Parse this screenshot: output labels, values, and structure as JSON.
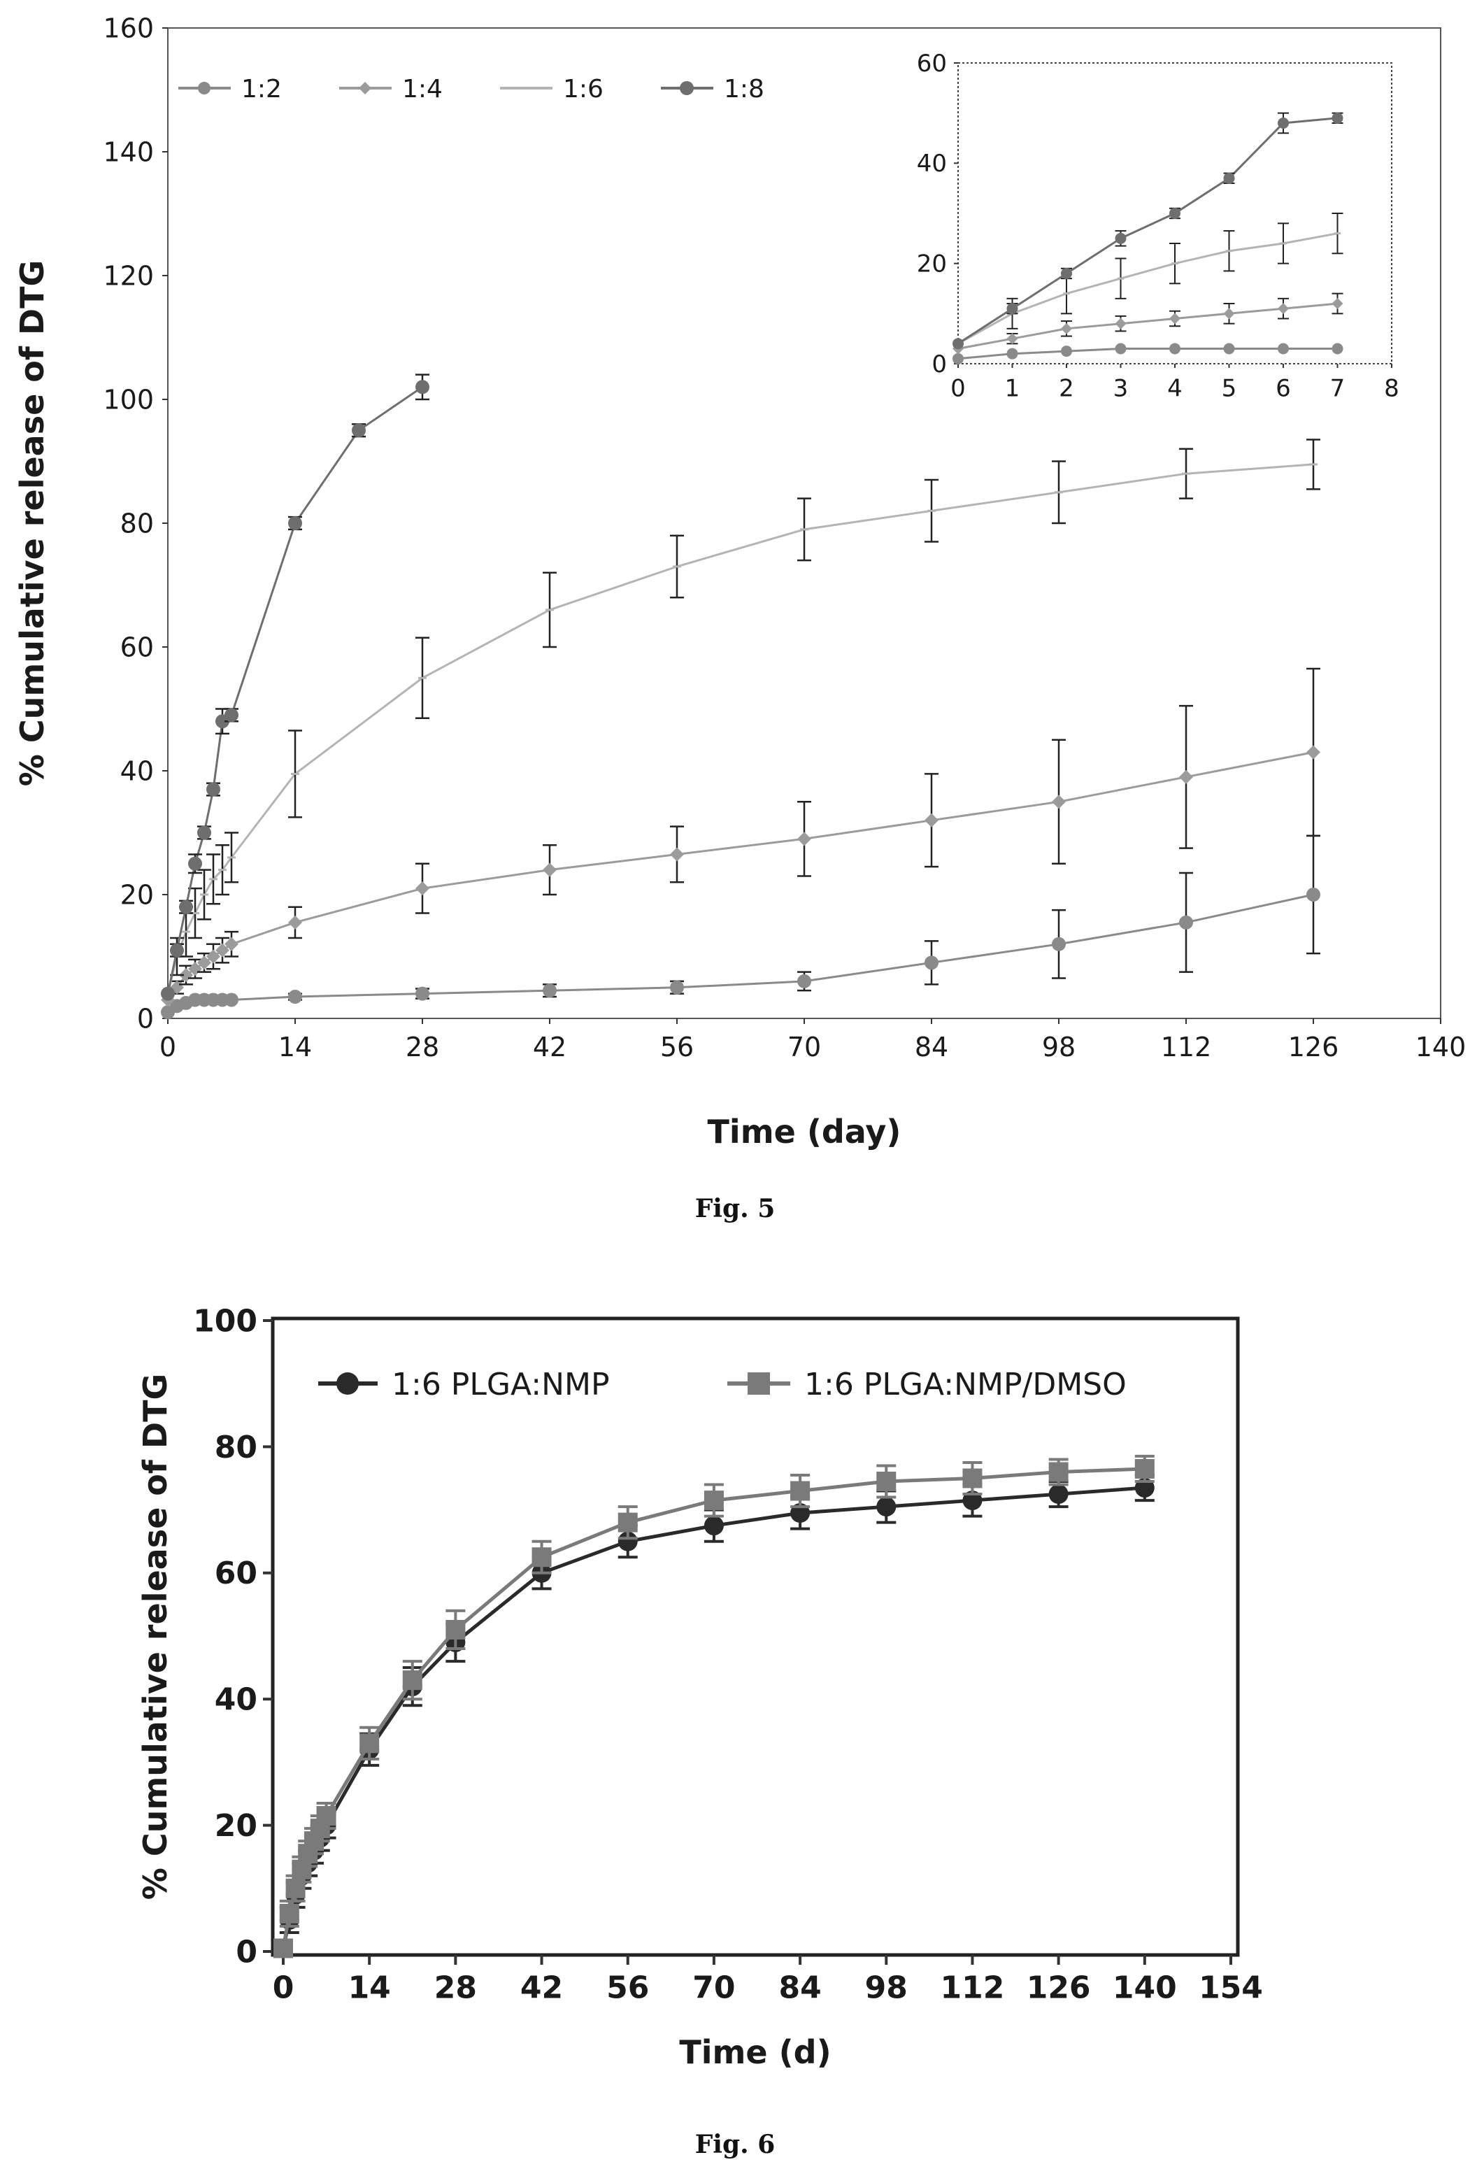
{
  "chart_data": [
    {
      "type": "line",
      "title": "",
      "xlabel": "Time (day)",
      "ylabel": "% Cumulative release of DTG",
      "xlim": [
        0,
        140
      ],
      "ylim": [
        0,
        160
      ],
      "xticks": [
        0,
        14,
        28,
        42,
        56,
        70,
        84,
        98,
        112,
        126,
        140
      ],
      "yticks": [
        0,
        20,
        40,
        60,
        80,
        100,
        120,
        140,
        160
      ],
      "legend_position": "top-left",
      "grid": false,
      "caption": "Fig. 5",
      "series": [
        {
          "name": "1:2",
          "color": "#8a8a8a",
          "x": [
            0,
            1,
            2,
            3,
            4,
            5,
            6,
            7,
            14,
            28,
            42,
            56,
            70,
            84,
            98,
            112,
            126
          ],
          "y": [
            1,
            2,
            2.5,
            3,
            3,
            3,
            3,
            3,
            3.5,
            4,
            4.5,
            5,
            6,
            9,
            12,
            15.5,
            20
          ],
          "err": [
            0,
            0,
            0,
            0,
            0,
            0,
            0,
            0,
            0.5,
            0.8,
            1,
            1,
            1.5,
            3.5,
            5.5,
            8,
            9.5
          ]
        },
        {
          "name": "1:4",
          "color": "#9b9b9b",
          "x": [
            0,
            1,
            2,
            3,
            4,
            5,
            6,
            7,
            14,
            28,
            42,
            56,
            70,
            84,
            98,
            112,
            126
          ],
          "y": [
            3,
            5,
            7,
            8,
            9,
            10,
            11,
            12,
            15.5,
            21,
            24,
            26.5,
            29,
            32,
            35,
            39,
            43
          ],
          "err": [
            0,
            1,
            1.5,
            1.5,
            1.5,
            2,
            2,
            2,
            2.5,
            4,
            4,
            4.5,
            6,
            7.5,
            10,
            11.5,
            13.5
          ]
        },
        {
          "name": "1:6",
          "color": "#b4b4b4",
          "x": [
            0,
            1,
            2,
            3,
            4,
            5,
            6,
            7,
            14,
            28,
            42,
            56,
            70,
            84,
            98,
            112,
            126
          ],
          "y": [
            4,
            10,
            14,
            17,
            20,
            22.5,
            24,
            26,
            39.5,
            55,
            66,
            73,
            79,
            82,
            85,
            88,
            89.5
          ],
          "err": [
            0,
            3,
            4,
            4,
            4,
            4,
            4,
            4,
            7,
            6.5,
            6,
            5,
            5,
            5,
            5,
            4,
            4
          ]
        },
        {
          "name": "1:8",
          "color": "#6e6e6e",
          "x": [
            0,
            1,
            2,
            3,
            4,
            5,
            6,
            7,
            14,
            21,
            28
          ],
          "y": [
            4,
            11,
            18,
            25,
            30,
            37,
            48,
            49,
            80,
            95,
            102
          ],
          "err": [
            0,
            1,
            1,
            1.5,
            1,
            1,
            2,
            1,
            1,
            1,
            2
          ]
        }
      ],
      "inset": {
        "xlim": [
          0,
          8
        ],
        "ylim": [
          0,
          60
        ],
        "xticks": [
          0,
          1,
          2,
          3,
          4,
          5,
          6,
          7,
          8
        ],
        "yticks": [
          0,
          20,
          40,
          60
        ]
      }
    },
    {
      "type": "line",
      "title": "",
      "xlabel": "Time (d)",
      "ylabel": "% Cumulative release of DTG",
      "xlim": [
        0,
        154
      ],
      "ylim": [
        0,
        100
      ],
      "xticks": [
        0,
        14,
        28,
        42,
        56,
        70,
        84,
        98,
        112,
        126,
        140,
        154
      ],
      "yticks": [
        0,
        20,
        40,
        60,
        80,
        100
      ],
      "legend_position": "top",
      "grid": false,
      "caption": "Fig. 6",
      "series": [
        {
          "name": "1:6 PLGA:NMP",
          "color": "#2a2a2a",
          "x": [
            0,
            1,
            2,
            3,
            4,
            5,
            6,
            7,
            14,
            21,
            28,
            42,
            56,
            70,
            84,
            98,
            112,
            126,
            140
          ],
          "y": [
            0.5,
            5,
            9,
            12,
            14,
            16,
            18,
            20,
            32,
            42,
            49,
            60,
            65,
            67.5,
            69.5,
            70.5,
            71.5,
            72.5,
            73.5
          ],
          "err": [
            0.5,
            2,
            2,
            2,
            2,
            2,
            2,
            2,
            2.5,
            3,
            3,
            2.5,
            2.5,
            2.5,
            2.5,
            2.5,
            2.5,
            2,
            2
          ]
        },
        {
          "name": "1:6 PLGA:NMP/DMSO",
          "color": "#7a7a7a",
          "x": [
            0,
            1,
            2,
            3,
            4,
            5,
            6,
            7,
            14,
            21,
            28,
            42,
            56,
            70,
            84,
            98,
            112,
            126,
            140
          ],
          "y": [
            0.5,
            6,
            10,
            13,
            15.5,
            17.5,
            19.5,
            21.5,
            33,
            43,
            51,
            62.5,
            68,
            71.5,
            73,
            74.5,
            75,
            76,
            76.5
          ],
          "err": [
            0.5,
            2,
            2,
            2,
            2,
            2,
            2,
            2,
            2.5,
            3,
            3,
            2.5,
            2.5,
            2.5,
            2.5,
            2.5,
            2.5,
            2,
            2
          ]
        }
      ]
    }
  ]
}
